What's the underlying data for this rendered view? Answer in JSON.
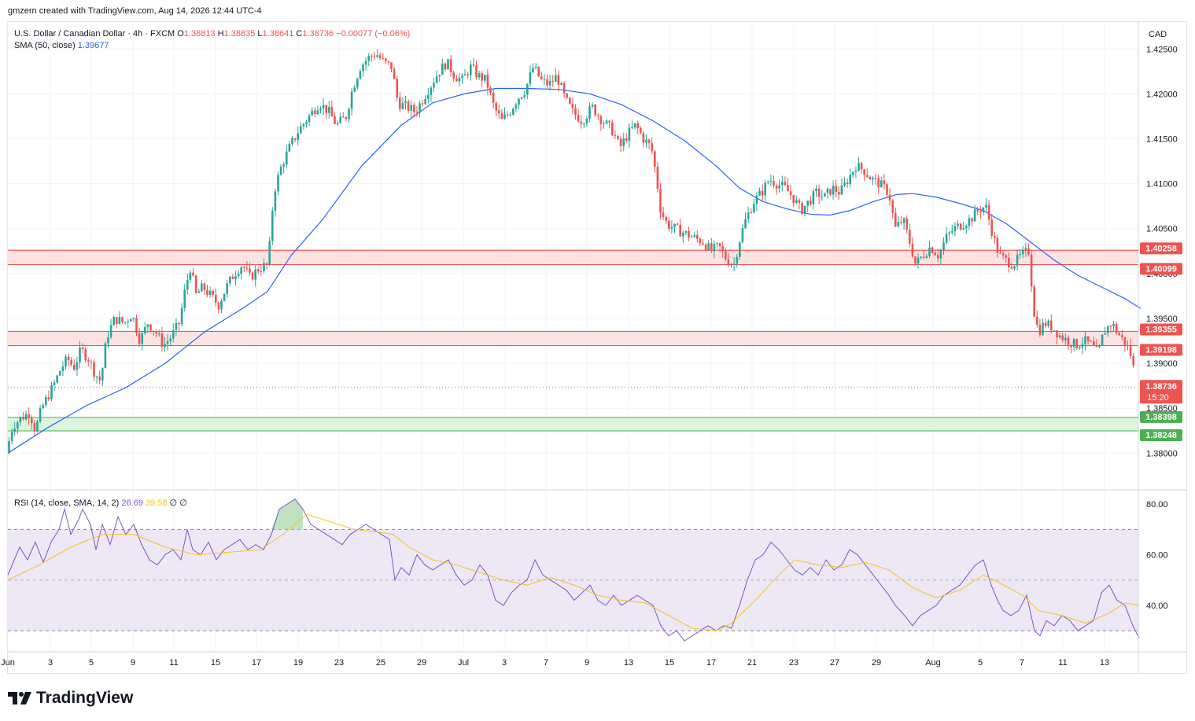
{
  "header": {
    "credit": "gmzern created with TradingView.com, Aug 14, 2026 12:44 UTC-4"
  },
  "legend": {
    "symbol": "U.S. Dollar / Canadian Dollar · 4h · FXCM",
    "open_label": "O",
    "open": "1.38813",
    "high_label": "H",
    "high": "1.38835",
    "low_label": "L",
    "low": "1.38641",
    "close_label": "C",
    "close": "1.38736",
    "change": "−0.00077 (−0.06%)",
    "sma_label": "SMA (50, close)",
    "sma_value": "1.39677"
  },
  "rsi_legend": {
    "label": "RSI (14, close, SMA, 14, 2)",
    "rsi": "26.69",
    "rsi_ma": "39.58",
    "empty1": "∅",
    "empty2": "∅"
  },
  "axis": {
    "currency": "CAD",
    "price_ticks": [
      "1.42500",
      "1.42000",
      "1.41500",
      "1.41000",
      "1.40500",
      "1.40000",
      "1.39500",
      "1.39000",
      "1.38500",
      "1.38000"
    ],
    "rsi_ticks": [
      "80.00",
      "60.00",
      "40.00"
    ],
    "x_ticks": [
      "Jun",
      "3",
      "5",
      "9",
      "11",
      "15",
      "17",
      "19",
      "23",
      "25",
      "29",
      "Jul",
      "3",
      "7",
      "9",
      "13",
      "15",
      "17",
      "21",
      "23",
      "27",
      "29",
      "Aug",
      "5",
      "7",
      "11",
      "13"
    ],
    "last_price_label": "1.38736",
    "countdown": "15:20",
    "zone_labels": [
      "1.40258",
      "1.40099",
      "1.39355",
      "1.39198",
      "1.38398",
      "1.38248"
    ]
  },
  "brand": {
    "logo_text": "TradingView"
  },
  "colors": {
    "up": "#26a69a",
    "down": "#ef5350",
    "sma": "#2962ff",
    "rsi": "#7e57c2",
    "rsi_ma": "#f5c518",
    "resistance_fill": "#fde2e2",
    "resistance_line": "#ef5350",
    "support_fill": "#dcf5dc",
    "support_line": "#4caf50",
    "rsi_band": "#ede7f6"
  },
  "chart_data": {
    "type": "candlestick",
    "symbol": "USDCAD",
    "timeframe": "4h",
    "ylim": [
      1.376,
      1.428
    ],
    "rsi_ylim": [
      22,
      85
    ],
    "zones": [
      {
        "kind": "resistance",
        "top": 1.40258,
        "bottom": 1.40099
      },
      {
        "kind": "resistance",
        "top": 1.39355,
        "bottom": 1.39198
      },
      {
        "kind": "support",
        "top": 1.38398,
        "bottom": 1.38248
      }
    ],
    "rsi_levels": [
      70,
      50,
      30
    ],
    "price_path": [
      [
        0,
        1.38
      ],
      [
        8,
        1.383
      ],
      [
        20,
        1.384
      ],
      [
        30,
        1.3845
      ],
      [
        37,
        1.3825
      ],
      [
        45,
        1.385
      ],
      [
        60,
        1.3875
      ],
      [
        70,
        1.3895
      ],
      [
        78,
        1.3905
      ],
      [
        86,
        1.3895
      ],
      [
        95,
        1.3915
      ],
      [
        105,
        1.3905
      ],
      [
        112,
        1.389
      ],
      [
        120,
        1.388
      ],
      [
        128,
        1.393
      ],
      [
        138,
        1.395
      ],
      [
        150,
        1.3945
      ],
      [
        160,
        1.3955
      ],
      [
        170,
        1.3925
      ],
      [
        180,
        1.3945
      ],
      [
        190,
        1.3935
      ],
      [
        200,
        1.392
      ],
      [
        210,
        1.393
      ],
      [
        220,
        1.3945
      ],
      [
        228,
        1.3985
      ],
      [
        235,
        1.401
      ],
      [
        240,
        1.3975
      ],
      [
        250,
        1.3985
      ],
      [
        260,
        1.3975
      ],
      [
        270,
        1.3965
      ],
      [
        280,
        1.3985
      ],
      [
        290,
        1.4
      ],
      [
        300,
        1.401
      ],
      [
        310,
        1.3995
      ],
      [
        320,
        1.4005
      ],
      [
        333,
        1.401
      ],
      [
        340,
        1.409
      ],
      [
        350,
        1.412
      ],
      [
        360,
        1.414
      ],
      [
        372,
        1.416
      ],
      [
        385,
        1.4175
      ],
      [
        398,
        1.419
      ],
      [
        410,
        1.418
      ],
      [
        420,
        1.4165
      ],
      [
        432,
        1.4175
      ],
      [
        440,
        1.4205
      ],
      [
        450,
        1.423
      ],
      [
        460,
        1.424
      ],
      [
        470,
        1.4245
      ],
      [
        480,
        1.4235
      ],
      [
        490,
        1.423
      ],
      [
        498,
        1.419
      ],
      [
        510,
        1.4185
      ],
      [
        520,
        1.418
      ],
      [
        530,
        1.4195
      ],
      [
        540,
        1.421
      ],
      [
        550,
        1.4225
      ],
      [
        560,
        1.4235
      ],
      [
        570,
        1.422
      ],
      [
        580,
        1.4215
      ],
      [
        590,
        1.423
      ],
      [
        600,
        1.422
      ],
      [
        610,
        1.4215
      ],
      [
        620,
        1.4185
      ],
      [
        630,
        1.417
      ],
      [
        640,
        1.418
      ],
      [
        650,
        1.4195
      ],
      [
        660,
        1.4205
      ],
      [
        670,
        1.423
      ],
      [
        680,
        1.4215
      ],
      [
        690,
        1.421
      ],
      [
        700,
        1.422
      ],
      [
        710,
        1.4195
      ],
      [
        720,
        1.418
      ],
      [
        732,
        1.417
      ],
      [
        745,
        1.4185
      ],
      [
        758,
        1.417
      ],
      [
        770,
        1.416
      ],
      [
        780,
        1.414
      ],
      [
        790,
        1.4155
      ],
      [
        800,
        1.4165
      ],
      [
        810,
        1.415
      ],
      [
        820,
        1.414
      ],
      [
        826,
        1.411
      ],
      [
        832,
        1.407
      ],
      [
        840,
        1.4055
      ],
      [
        850,
        1.405
      ],
      [
        862,
        1.4045
      ],
      [
        874,
        1.404
      ],
      [
        886,
        1.4035
      ],
      [
        896,
        1.4025
      ],
      [
        906,
        1.403
      ],
      [
        916,
        1.4015
      ],
      [
        925,
        1.401
      ],
      [
        933,
        1.404
      ],
      [
        940,
        1.406
      ],
      [
        950,
        1.408
      ],
      [
        960,
        1.409
      ],
      [
        970,
        1.4105
      ],
      [
        980,
        1.41
      ],
      [
        990,
        1.4095
      ],
      [
        1000,
        1.4085
      ],
      [
        1010,
        1.407
      ],
      [
        1020,
        1.408
      ],
      [
        1030,
        1.409
      ],
      [
        1040,
        1.4085
      ],
      [
        1050,
        1.4095
      ],
      [
        1060,
        1.409
      ],
      [
        1070,
        1.4105
      ],
      [
        1080,
        1.412
      ],
      [
        1090,
        1.4115
      ],
      [
        1100,
        1.4105
      ],
      [
        1110,
        1.41
      ],
      [
        1122,
        1.409
      ],
      [
        1130,
        1.405
      ],
      [
        1140,
        1.406
      ],
      [
        1150,
        1.403
      ],
      [
        1156,
        1.401
      ],
      [
        1165,
        1.402
      ],
      [
        1175,
        1.403
      ],
      [
        1185,
        1.402
      ],
      [
        1195,
        1.404
      ],
      [
        1205,
        1.405
      ],
      [
        1215,
        1.4055
      ],
      [
        1225,
        1.406
      ],
      [
        1235,
        1.407
      ],
      [
        1245,
        1.4075
      ],
      [
        1255,
        1.404
      ],
      [
        1262,
        1.402
      ],
      [
        1270,
        1.4015
      ],
      [
        1280,
        1.401
      ],
      [
        1290,
        1.402
      ],
      [
        1300,
        1.4025
      ],
      [
        1306,
        1.396
      ],
      [
        1312,
        1.3935
      ],
      [
        1320,
        1.3945
      ],
      [
        1330,
        1.394
      ],
      [
        1340,
        1.393
      ],
      [
        1350,
        1.3925
      ],
      [
        1360,
        1.392
      ],
      [
        1370,
        1.3925
      ],
      [
        1380,
        1.392
      ],
      [
        1388,
        1.391
      ],
      [
        1395,
        1.3935
      ],
      [
        1405,
        1.3945
      ],
      [
        1412,
        1.3935
      ],
      [
        1420,
        1.3925
      ],
      [
        1428,
        1.3915
      ],
      [
        1434,
        1.389
      ],
      [
        1440,
        1.3874
      ]
    ],
    "sma_path": [
      [
        0,
        1.38
      ],
      [
        50,
        1.3828
      ],
      [
        100,
        1.3853
      ],
      [
        150,
        1.3873
      ],
      [
        200,
        1.39
      ],
      [
        250,
        1.3935
      ],
      [
        300,
        1.3962
      ],
      [
        330,
        1.398
      ],
      [
        360,
        1.402
      ],
      [
        400,
        1.406
      ],
      [
        450,
        1.412
      ],
      [
        500,
        1.4165
      ],
      [
        540,
        1.419
      ],
      [
        580,
        1.42
      ],
      [
        620,
        1.4206
      ],
      [
        660,
        1.4206
      ],
      [
        700,
        1.4205
      ],
      [
        740,
        1.42
      ],
      [
        780,
        1.4188
      ],
      [
        820,
        1.417
      ],
      [
        860,
        1.4148
      ],
      [
        900,
        1.412
      ],
      [
        930,
        1.4095
      ],
      [
        960,
        1.408
      ],
      [
        990,
        1.4072
      ],
      [
        1020,
        1.4066
      ],
      [
        1045,
        1.4065
      ],
      [
        1070,
        1.407
      ],
      [
        1100,
        1.408
      ],
      [
        1130,
        1.4088
      ],
      [
        1150,
        1.4089
      ],
      [
        1180,
        1.4085
      ],
      [
        1210,
        1.4078
      ],
      [
        1240,
        1.407
      ],
      [
        1270,
        1.4055
      ],
      [
        1300,
        1.4035
      ],
      [
        1330,
        1.4015
      ],
      [
        1360,
        1.3998
      ],
      [
        1390,
        1.3985
      ],
      [
        1420,
        1.3972
      ],
      [
        1440,
        1.3961
      ]
    ],
    "rsi_path": [
      [
        0,
        52
      ],
      [
        15,
        63
      ],
      [
        25,
        58
      ],
      [
        35,
        65
      ],
      [
        45,
        57
      ],
      [
        55,
        65
      ],
      [
        65,
        70
      ],
      [
        72,
        78
      ],
      [
        80,
        68
      ],
      [
        90,
        74
      ],
      [
        95,
        78
      ],
      [
        105,
        72
      ],
      [
        112,
        62
      ],
      [
        120,
        72
      ],
      [
        130,
        64
      ],
      [
        140,
        75
      ],
      [
        150,
        68
      ],
      [
        160,
        72
      ],
      [
        170,
        64
      ],
      [
        180,
        58
      ],
      [
        190,
        56
      ],
      [
        200,
        60
      ],
      [
        210,
        62
      ],
      [
        220,
        58
      ],
      [
        228,
        70
      ],
      [
        235,
        62
      ],
      [
        245,
        60
      ],
      [
        255,
        65
      ],
      [
        265,
        58
      ],
      [
        275,
        62
      ],
      [
        285,
        64
      ],
      [
        295,
        66
      ],
      [
        305,
        62
      ],
      [
        315,
        64
      ],
      [
        325,
        62
      ],
      [
        335,
        68
      ],
      [
        345,
        78
      ],
      [
        355,
        80
      ],
      [
        365,
        82
      ],
      [
        375,
        78
      ],
      [
        385,
        72
      ],
      [
        395,
        70
      ],
      [
        405,
        68
      ],
      [
        415,
        66
      ],
      [
        425,
        64
      ],
      [
        435,
        68
      ],
      [
        445,
        70
      ],
      [
        455,
        72
      ],
      [
        465,
        70
      ],
      [
        475,
        68
      ],
      [
        485,
        66
      ],
      [
        492,
        50
      ],
      [
        500,
        55
      ],
      [
        510,
        52
      ],
      [
        520,
        60
      ],
      [
        530,
        56
      ],
      [
        540,
        54
      ],
      [
        550,
        56
      ],
      [
        560,
        58
      ],
      [
        570,
        52
      ],
      [
        580,
        48
      ],
      [
        590,
        50
      ],
      [
        600,
        56
      ],
      [
        610,
        52
      ],
      [
        620,
        42
      ],
      [
        630,
        40
      ],
      [
        640,
        45
      ],
      [
        650,
        48
      ],
      [
        660,
        50
      ],
      [
        670,
        58
      ],
      [
        680,
        52
      ],
      [
        690,
        50
      ],
      [
        700,
        48
      ],
      [
        710,
        46
      ],
      [
        720,
        42
      ],
      [
        730,
        45
      ],
      [
        740,
        48
      ],
      [
        750,
        42
      ],
      [
        760,
        40
      ],
      [
        770,
        44
      ],
      [
        780,
        40
      ],
      [
        790,
        42
      ],
      [
        800,
        44
      ],
      [
        810,
        42
      ],
      [
        820,
        40
      ],
      [
        830,
        32
      ],
      [
        840,
        28
      ],
      [
        850,
        30
      ],
      [
        860,
        26
      ],
      [
        870,
        28
      ],
      [
        880,
        30
      ],
      [
        890,
        32
      ],
      [
        900,
        30
      ],
      [
        910,
        32
      ],
      [
        920,
        31
      ],
      [
        930,
        40
      ],
      [
        940,
        50
      ],
      [
        950,
        58
      ],
      [
        960,
        60
      ],
      [
        970,
        65
      ],
      [
        980,
        62
      ],
      [
        990,
        58
      ],
      [
        1000,
        54
      ],
      [
        1010,
        52
      ],
      [
        1020,
        55
      ],
      [
        1030,
        52
      ],
      [
        1040,
        58
      ],
      [
        1050,
        54
      ],
      [
        1060,
        56
      ],
      [
        1070,
        62
      ],
      [
        1080,
        60
      ],
      [
        1090,
        56
      ],
      [
        1100,
        52
      ],
      [
        1110,
        48
      ],
      [
        1120,
        44
      ],
      [
        1128,
        40
      ],
      [
        1140,
        36
      ],
      [
        1150,
        32
      ],
      [
        1160,
        36
      ],
      [
        1170,
        38
      ],
      [
        1180,
        40
      ],
      [
        1190,
        44
      ],
      [
        1200,
        46
      ],
      [
        1210,
        48
      ],
      [
        1220,
        52
      ],
      [
        1230,
        56
      ],
      [
        1240,
        58
      ],
      [
        1250,
        48
      ],
      [
        1258,
        42
      ],
      [
        1265,
        38
      ],
      [
        1275,
        36
      ],
      [
        1285,
        38
      ],
      [
        1295,
        44
      ],
      [
        1305,
        30
      ],
      [
        1312,
        28
      ],
      [
        1320,
        34
      ],
      [
        1330,
        32
      ],
      [
        1340,
        36
      ],
      [
        1350,
        34
      ],
      [
        1360,
        30
      ],
      [
        1370,
        32
      ],
      [
        1380,
        34
      ],
      [
        1390,
        45
      ],
      [
        1400,
        48
      ],
      [
        1410,
        42
      ],
      [
        1420,
        40
      ],
      [
        1430,
        32
      ],
      [
        1438,
        27
      ]
    ],
    "rsi_ma_path": [
      [
        0,
        50
      ],
      [
        40,
        56
      ],
      [
        80,
        63
      ],
      [
        120,
        68
      ],
      [
        160,
        68
      ],
      [
        200,
        63
      ],
      [
        240,
        60
      ],
      [
        280,
        61
      ],
      [
        320,
        62
      ],
      [
        350,
        68
      ],
      [
        380,
        76
      ],
      [
        410,
        73
      ],
      [
        440,
        70
      ],
      [
        470,
        69
      ],
      [
        490,
        68
      ],
      [
        510,
        63
      ],
      [
        540,
        58
      ],
      [
        570,
        56
      ],
      [
        600,
        53
      ],
      [
        630,
        50
      ],
      [
        660,
        48
      ],
      [
        690,
        51
      ],
      [
        720,
        48
      ],
      [
        750,
        44
      ],
      [
        780,
        42
      ],
      [
        810,
        41
      ],
      [
        840,
        36
      ],
      [
        870,
        31
      ],
      [
        900,
        30
      ],
      [
        920,
        33
      ],
      [
        950,
        42
      ],
      [
        980,
        52
      ],
      [
        1000,
        58
      ],
      [
        1030,
        56
      ],
      [
        1060,
        55
      ],
      [
        1090,
        57
      ],
      [
        1120,
        54
      ],
      [
        1150,
        47
      ],
      [
        1180,
        43
      ],
      [
        1210,
        46
      ],
      [
        1240,
        52
      ],
      [
        1260,
        49
      ],
      [
        1290,
        44
      ],
      [
        1310,
        38
      ],
      [
        1340,
        36
      ],
      [
        1370,
        33
      ],
      [
        1400,
        37
      ],
      [
        1420,
        41
      ],
      [
        1438,
        40
      ]
    ]
  }
}
